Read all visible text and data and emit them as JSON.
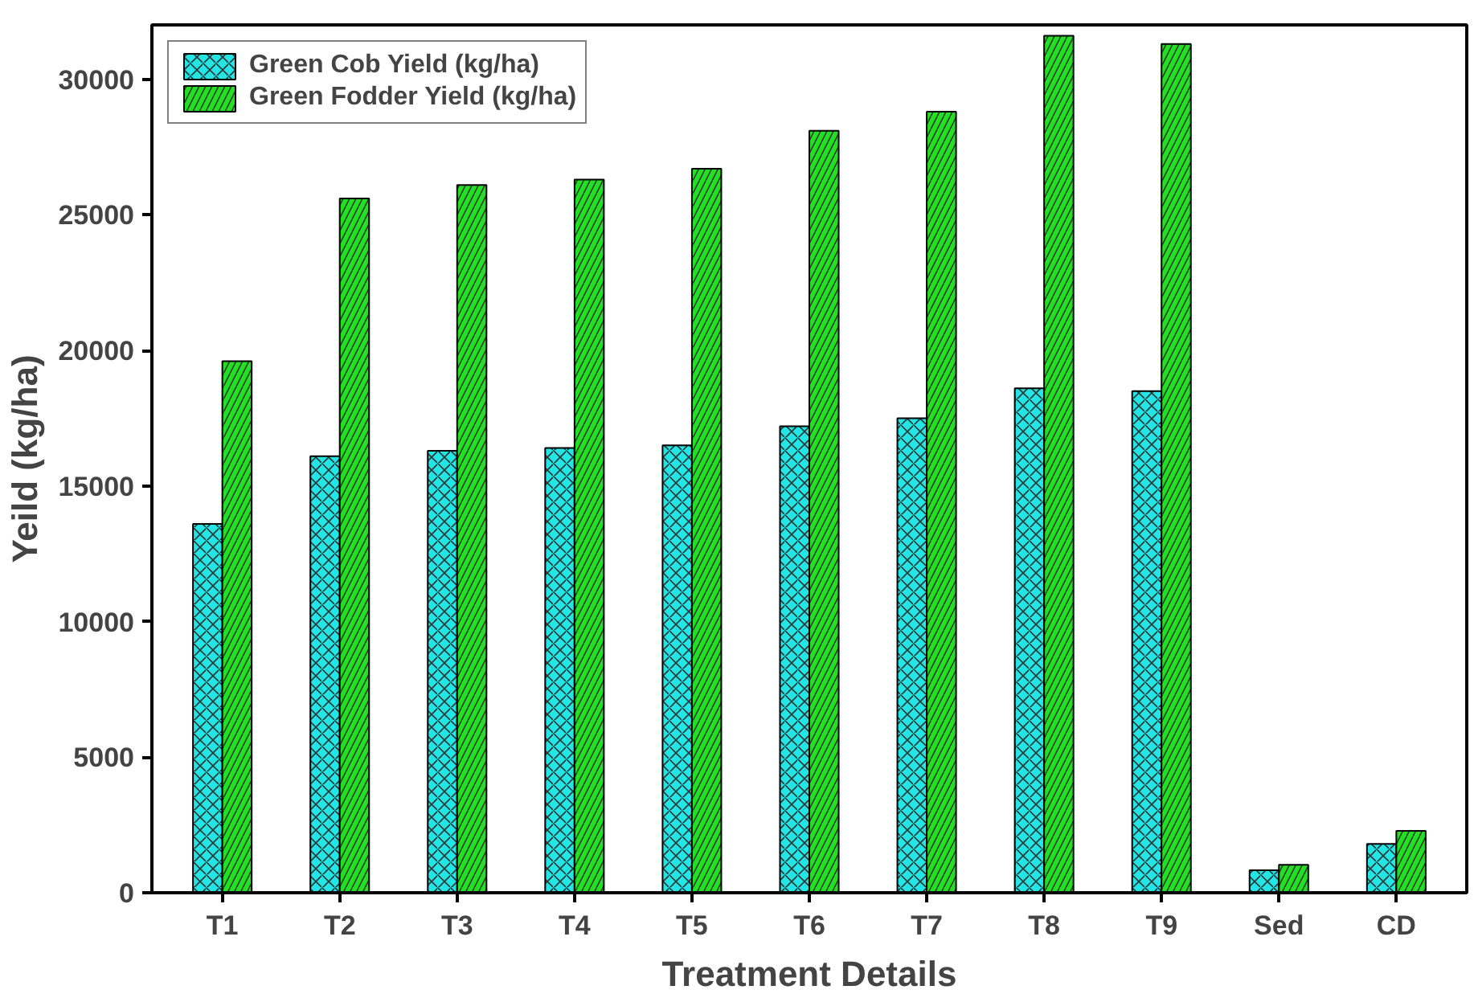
{
  "chart_data": {
    "type": "bar",
    "xlabel": "Treatment Details",
    "ylabel": "Yeild (kg/ha)",
    "categories": [
      "T1",
      "T2",
      "T3",
      "T4",
      "T5",
      "T6",
      "T7",
      "T8",
      "T9",
      "Sed",
      "CD"
    ],
    "series": [
      {
        "name": "Green Cob Yield (kg/ha)",
        "color": "#22e5e5",
        "values": [
          13600,
          16100,
          16300,
          16400,
          16500,
          17200,
          17500,
          18600,
          18500,
          830,
          1800
        ]
      },
      {
        "name": "Green Fodder Yield (kg/ha)",
        "color": "#22e022",
        "values": [
          19600,
          25600,
          26100,
          26300,
          26700,
          28100,
          28800,
          31600,
          31300,
          1030,
          2280
        ]
      }
    ],
    "ylim": [
      0,
      32000
    ],
    "yticks": [
      0,
      5000,
      10000,
      15000,
      20000,
      25000,
      30000
    ],
    "grid": false,
    "legend": "top left"
  }
}
